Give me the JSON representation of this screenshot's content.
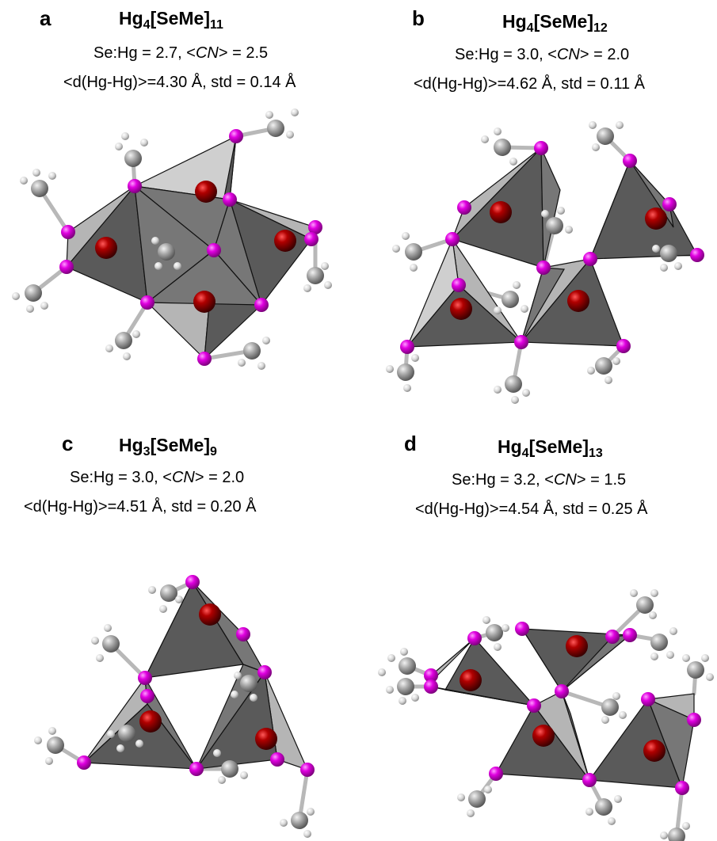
{
  "panels": [
    {
      "letter": "a",
      "formula_base": "Hg",
      "formula_sub1": "4",
      "formula_mid": "[SeMe]",
      "formula_sub2": "11",
      "ratio_text": "Se:Hg = 2.7, <",
      "cn_label": "CN",
      "cn_text": "> = 2.5",
      "distance_text": "<d(Hg-Hg)>=4.30 Å, std = 0.14 Å"
    },
    {
      "letter": "b",
      "formula_base": "Hg",
      "formula_sub1": "4",
      "formula_mid": "[SeMe]",
      "formula_sub2": "12",
      "ratio_text": "Se:Hg = 3.0, <",
      "cn_label": "CN",
      "cn_text": "> = 2.0",
      "distance_text": "<d(Hg-Hg)>=4.62 Å, std = 0.11 Å"
    },
    {
      "letter": "c",
      "formula_base": "Hg",
      "formula_sub1": "3",
      "formula_mid": "[SeMe]",
      "formula_sub2": "9",
      "ratio_text": "Se:Hg = 3.0, <",
      "cn_label": "CN",
      "cn_text": "> = 2.0",
      "distance_text": "<d(Hg-Hg)>=4.51 Å, std = 0.20 Å"
    },
    {
      "letter": "d",
      "formula_base": "Hg",
      "formula_sub1": "4",
      "formula_mid": "[SeMe]",
      "formula_sub2": "13",
      "ratio_text": "Se:Hg = 3.2, <",
      "cn_label": "CN",
      "cn_text": "> = 1.5",
      "distance_text": "<d(Hg-Hg)>=4.54 Å, std = 0.25 Å"
    }
  ],
  "colors": {
    "hg_atom": "#8b0000",
    "se_atom": "#d400d4",
    "c_atom": "#a8a8a8",
    "h_atom": "#e0e0e0",
    "polyhedron_dark": "#5a5a5a",
    "polyhedron_light": "#b5b5b5"
  }
}
